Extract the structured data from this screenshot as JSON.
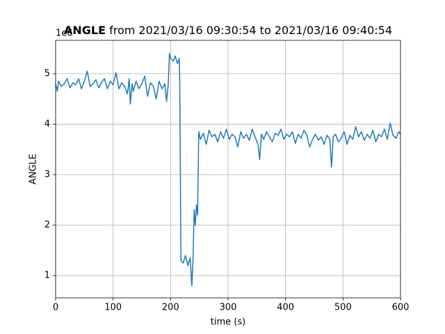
{
  "chart_data": {
    "type": "line",
    "title": {
      "bold": "ANGLE",
      "rest": "from 2021/03/16 09:30:54 to 2021/03/16 09:40:54"
    },
    "offset_text": "1e6",
    "x_label": "time (s)",
    "y_label": "ANGLE",
    "xlim": [
      0,
      600
    ],
    "ylim": [
      0.56,
      5.66
    ],
    "xticks": [
      0,
      100,
      200,
      300,
      400,
      500,
      600
    ],
    "yticks": [
      1,
      2,
      3,
      4,
      5
    ],
    "grid": true,
    "series": [
      {
        "color": "#1f77b4",
        "x": [
          0,
          3,
          5,
          10,
          15,
          20,
          25,
          30,
          35,
          40,
          45,
          50,
          55,
          60,
          65,
          70,
          75,
          80,
          85,
          90,
          95,
          100,
          105,
          110,
          115,
          120,
          125,
          128,
          130,
          133,
          135,
          140,
          145,
          150,
          155,
          160,
          165,
          170,
          175,
          180,
          185,
          190,
          193,
          196,
          198,
          200,
          205,
          208,
          212,
          215,
          216,
          218,
          222,
          226,
          230,
          234,
          237,
          239,
          241,
          243,
          245,
          247,
          249,
          252,
          257,
          262,
          267,
          272,
          277,
          282,
          287,
          292,
          297,
          302,
          307,
          312,
          317,
          322,
          327,
          332,
          337,
          342,
          347,
          352,
          355,
          358,
          362,
          367,
          372,
          377,
          382,
          387,
          392,
          397,
          402,
          407,
          412,
          417,
          422,
          427,
          432,
          437,
          442,
          447,
          452,
          457,
          462,
          467,
          472,
          477,
          480,
          483,
          487,
          492,
          497,
          502,
          507,
          512,
          517,
          522,
          527,
          532,
          537,
          542,
          547,
          552,
          557,
          562,
          567,
          572,
          577,
          582,
          587,
          592,
          597,
          600
        ],
        "values": [
          4.8,
          4.65,
          4.85,
          4.75,
          4.8,
          4.9,
          4.72,
          4.82,
          4.78,
          4.9,
          4.7,
          4.85,
          5.05,
          4.75,
          4.8,
          4.88,
          4.72,
          4.83,
          4.9,
          4.7,
          4.85,
          4.78,
          5.02,
          4.7,
          4.82,
          4.75,
          4.6,
          4.9,
          4.4,
          4.8,
          4.65,
          4.85,
          4.7,
          4.8,
          4.95,
          4.55,
          4.82,
          4.75,
          4.5,
          4.85,
          4.7,
          4.8,
          4.45,
          4.8,
          5.4,
          5.3,
          5.25,
          5.35,
          5.2,
          5.3,
          4.8,
          1.3,
          1.25,
          1.4,
          1.2,
          1.35,
          0.8,
          1.3,
          2.3,
          2.0,
          2.4,
          2.2,
          3.85,
          3.7,
          3.82,
          3.6,
          3.88,
          3.75,
          3.8,
          3.65,
          3.85,
          3.72,
          3.9,
          3.7,
          3.8,
          3.75,
          3.55,
          3.85,
          3.72,
          3.8,
          3.68,
          3.9,
          3.75,
          3.6,
          3.3,
          3.8,
          3.7,
          3.85,
          3.75,
          3.65,
          3.82,
          3.78,
          3.9,
          3.7,
          3.8,
          3.75,
          3.85,
          3.62,
          3.8,
          3.72,
          3.88,
          3.78,
          3.55,
          3.7,
          3.8,
          3.68,
          3.75,
          3.6,
          3.78,
          3.7,
          3.15,
          3.75,
          3.8,
          3.65,
          3.72,
          3.85,
          3.6,
          3.78,
          3.7,
          3.95,
          3.75,
          3.85,
          3.68,
          3.8,
          3.72,
          3.88,
          3.65,
          3.8,
          3.75,
          3.9,
          3.7,
          4.02,
          3.78,
          3.72,
          3.85,
          3.8
        ]
      }
    ]
  }
}
